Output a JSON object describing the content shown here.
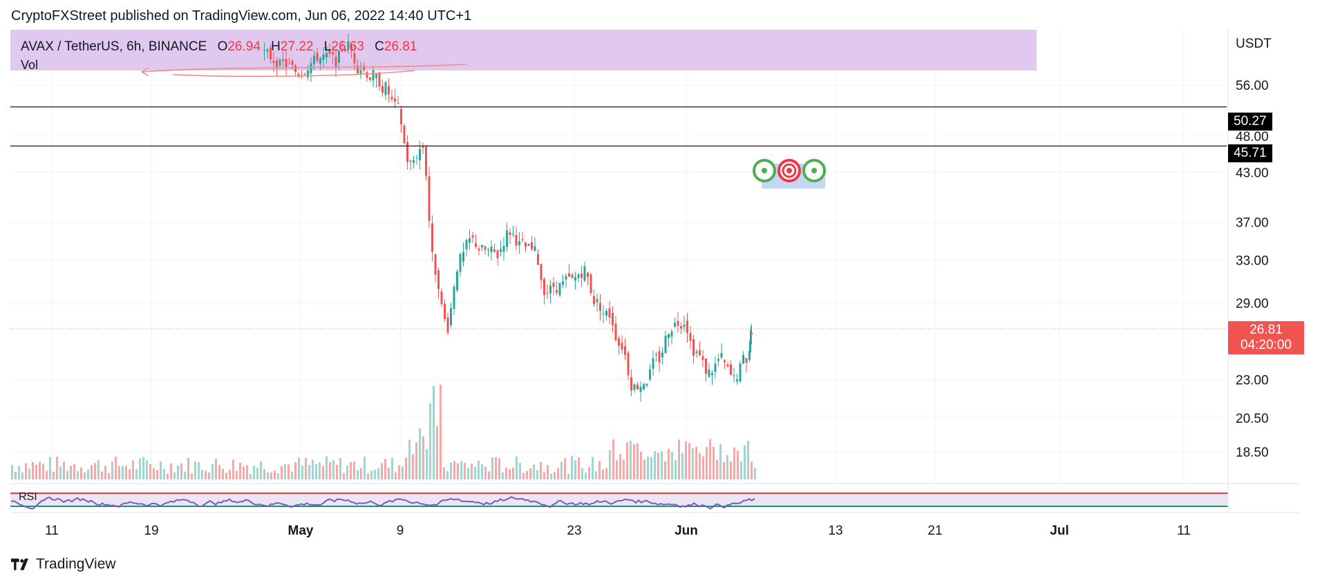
{
  "header": {
    "published_line": "CryptoFXStreet published on TradingView.com, Jun 06, 2022 14:40 UTC+1"
  },
  "legend": {
    "symbol": "AVAX / TetherUS, 6h, BINANCE",
    "open_label": "O",
    "open_value": "26.94",
    "high_label": "H",
    "high_value": "27.22",
    "low_label": "L",
    "low_value": "26.63",
    "close_label": "C",
    "close_value": "26.81",
    "volume_label": "Vol",
    "rsi_label": "RSI"
  },
  "price_axis": {
    "unit": "USDT",
    "ticks": [
      "56.00",
      "48.00",
      "43.00",
      "37.00",
      "33.00",
      "29.00",
      "23.00",
      "20.50",
      "18.50"
    ]
  },
  "horizontal_lines": [
    {
      "price": 50.27,
      "label": "50.27"
    },
    {
      "price": 45.71,
      "label": "45.71"
    }
  ],
  "last_price": {
    "value": "26.81",
    "countdown": "04:20:00"
  },
  "time_axis": {
    "ticks": [
      {
        "label": "11",
        "bold": false
      },
      {
        "label": "19",
        "bold": false
      },
      {
        "label": "May",
        "bold": true
      },
      {
        "label": "9",
        "bold": false
      },
      {
        "label": "23",
        "bold": false
      },
      {
        "label": "Jun",
        "bold": true
      },
      {
        "label": "13",
        "bold": false
      },
      {
        "label": "21",
        "bold": false
      },
      {
        "label": "Jul",
        "bold": true
      },
      {
        "label": "11",
        "bold": false
      }
    ]
  },
  "brand": {
    "name": "TradingView"
  },
  "colors": {
    "up": "#26a69a",
    "down": "#ef5350",
    "resistance_zone": "#e1c8ef",
    "rsi_line": "#7e57c2",
    "rsi_upper": "#f23645",
    "rsi_lower": "#089981",
    "target_zone": "#c5d6f5",
    "target_green": "#4caf50",
    "target_red": "#f23645"
  },
  "chart_data": {
    "type": "candlestick",
    "symbol": "AVAX / TetherUS",
    "interval": "6h",
    "exchange": "BINANCE",
    "y_scale": "log",
    "ylim": [
      17.0,
      65.0
    ],
    "x_range": [
      "2022-04-07",
      "2022-07-17"
    ],
    "close_series": [
      {
        "date": "2022-04-28",
        "close": 60.5
      },
      {
        "date": "2022-04-29",
        "close": 59.5
      },
      {
        "date": "2022-04-30",
        "close": 58.0
      },
      {
        "date": "2022-05-01",
        "close": 59.8
      },
      {
        "date": "2022-05-02",
        "close": 61.0
      },
      {
        "date": "2022-05-03",
        "close": 60.2
      },
      {
        "date": "2022-05-04",
        "close": 63.0
      },
      {
        "date": "2022-05-05",
        "close": 59.0
      },
      {
        "date": "2022-05-06",
        "close": 57.5
      },
      {
        "date": "2022-05-07",
        "close": 55.5
      },
      {
        "date": "2022-05-08",
        "close": 52.0
      },
      {
        "date": "2022-05-09",
        "close": 44.0
      },
      {
        "date": "2022-05-10",
        "close": 46.5
      },
      {
        "date": "2022-05-11",
        "close": 32.0
      },
      {
        "date": "2022-05-12",
        "close": 27.0
      },
      {
        "date": "2022-05-13",
        "close": 33.0
      },
      {
        "date": "2022-05-14",
        "close": 35.0
      },
      {
        "date": "2022-05-15",
        "close": 34.0
      },
      {
        "date": "2022-05-16",
        "close": 33.5
      },
      {
        "date": "2022-05-17",
        "close": 36.0
      },
      {
        "date": "2022-05-18",
        "close": 34.5
      },
      {
        "date": "2022-05-19",
        "close": 33.8
      },
      {
        "date": "2022-05-20",
        "close": 30.0
      },
      {
        "date": "2022-05-21",
        "close": 30.5
      },
      {
        "date": "2022-05-22",
        "close": 31.0
      },
      {
        "date": "2022-05-23",
        "close": 32.0
      },
      {
        "date": "2022-05-24",
        "close": 29.0
      },
      {
        "date": "2022-05-25",
        "close": 28.0
      },
      {
        "date": "2022-05-26",
        "close": 25.5
      },
      {
        "date": "2022-05-27",
        "close": 22.5
      },
      {
        "date": "2022-05-28",
        "close": 23.0
      },
      {
        "date": "2022-05-29",
        "close": 24.5
      },
      {
        "date": "2022-05-30",
        "close": 27.0
      },
      {
        "date": "2022-05-31",
        "close": 27.5
      },
      {
        "date": "2022-06-01",
        "close": 25.0
      },
      {
        "date": "2022-06-02",
        "close": 23.5
      },
      {
        "date": "2022-06-03",
        "close": 24.5
      },
      {
        "date": "2022-06-04",
        "close": 23.0
      },
      {
        "date": "2022-06-05",
        "close": 24.5
      },
      {
        "date": "2022-06-06",
        "close": 26.81
      }
    ],
    "last": {
      "open": 26.94,
      "high": 27.22,
      "low": 26.63,
      "close": 26.81
    },
    "levels": [
      50.27,
      45.71
    ],
    "resistance_zone": {
      "from": 58.5,
      "to": 65.0
    }
  }
}
